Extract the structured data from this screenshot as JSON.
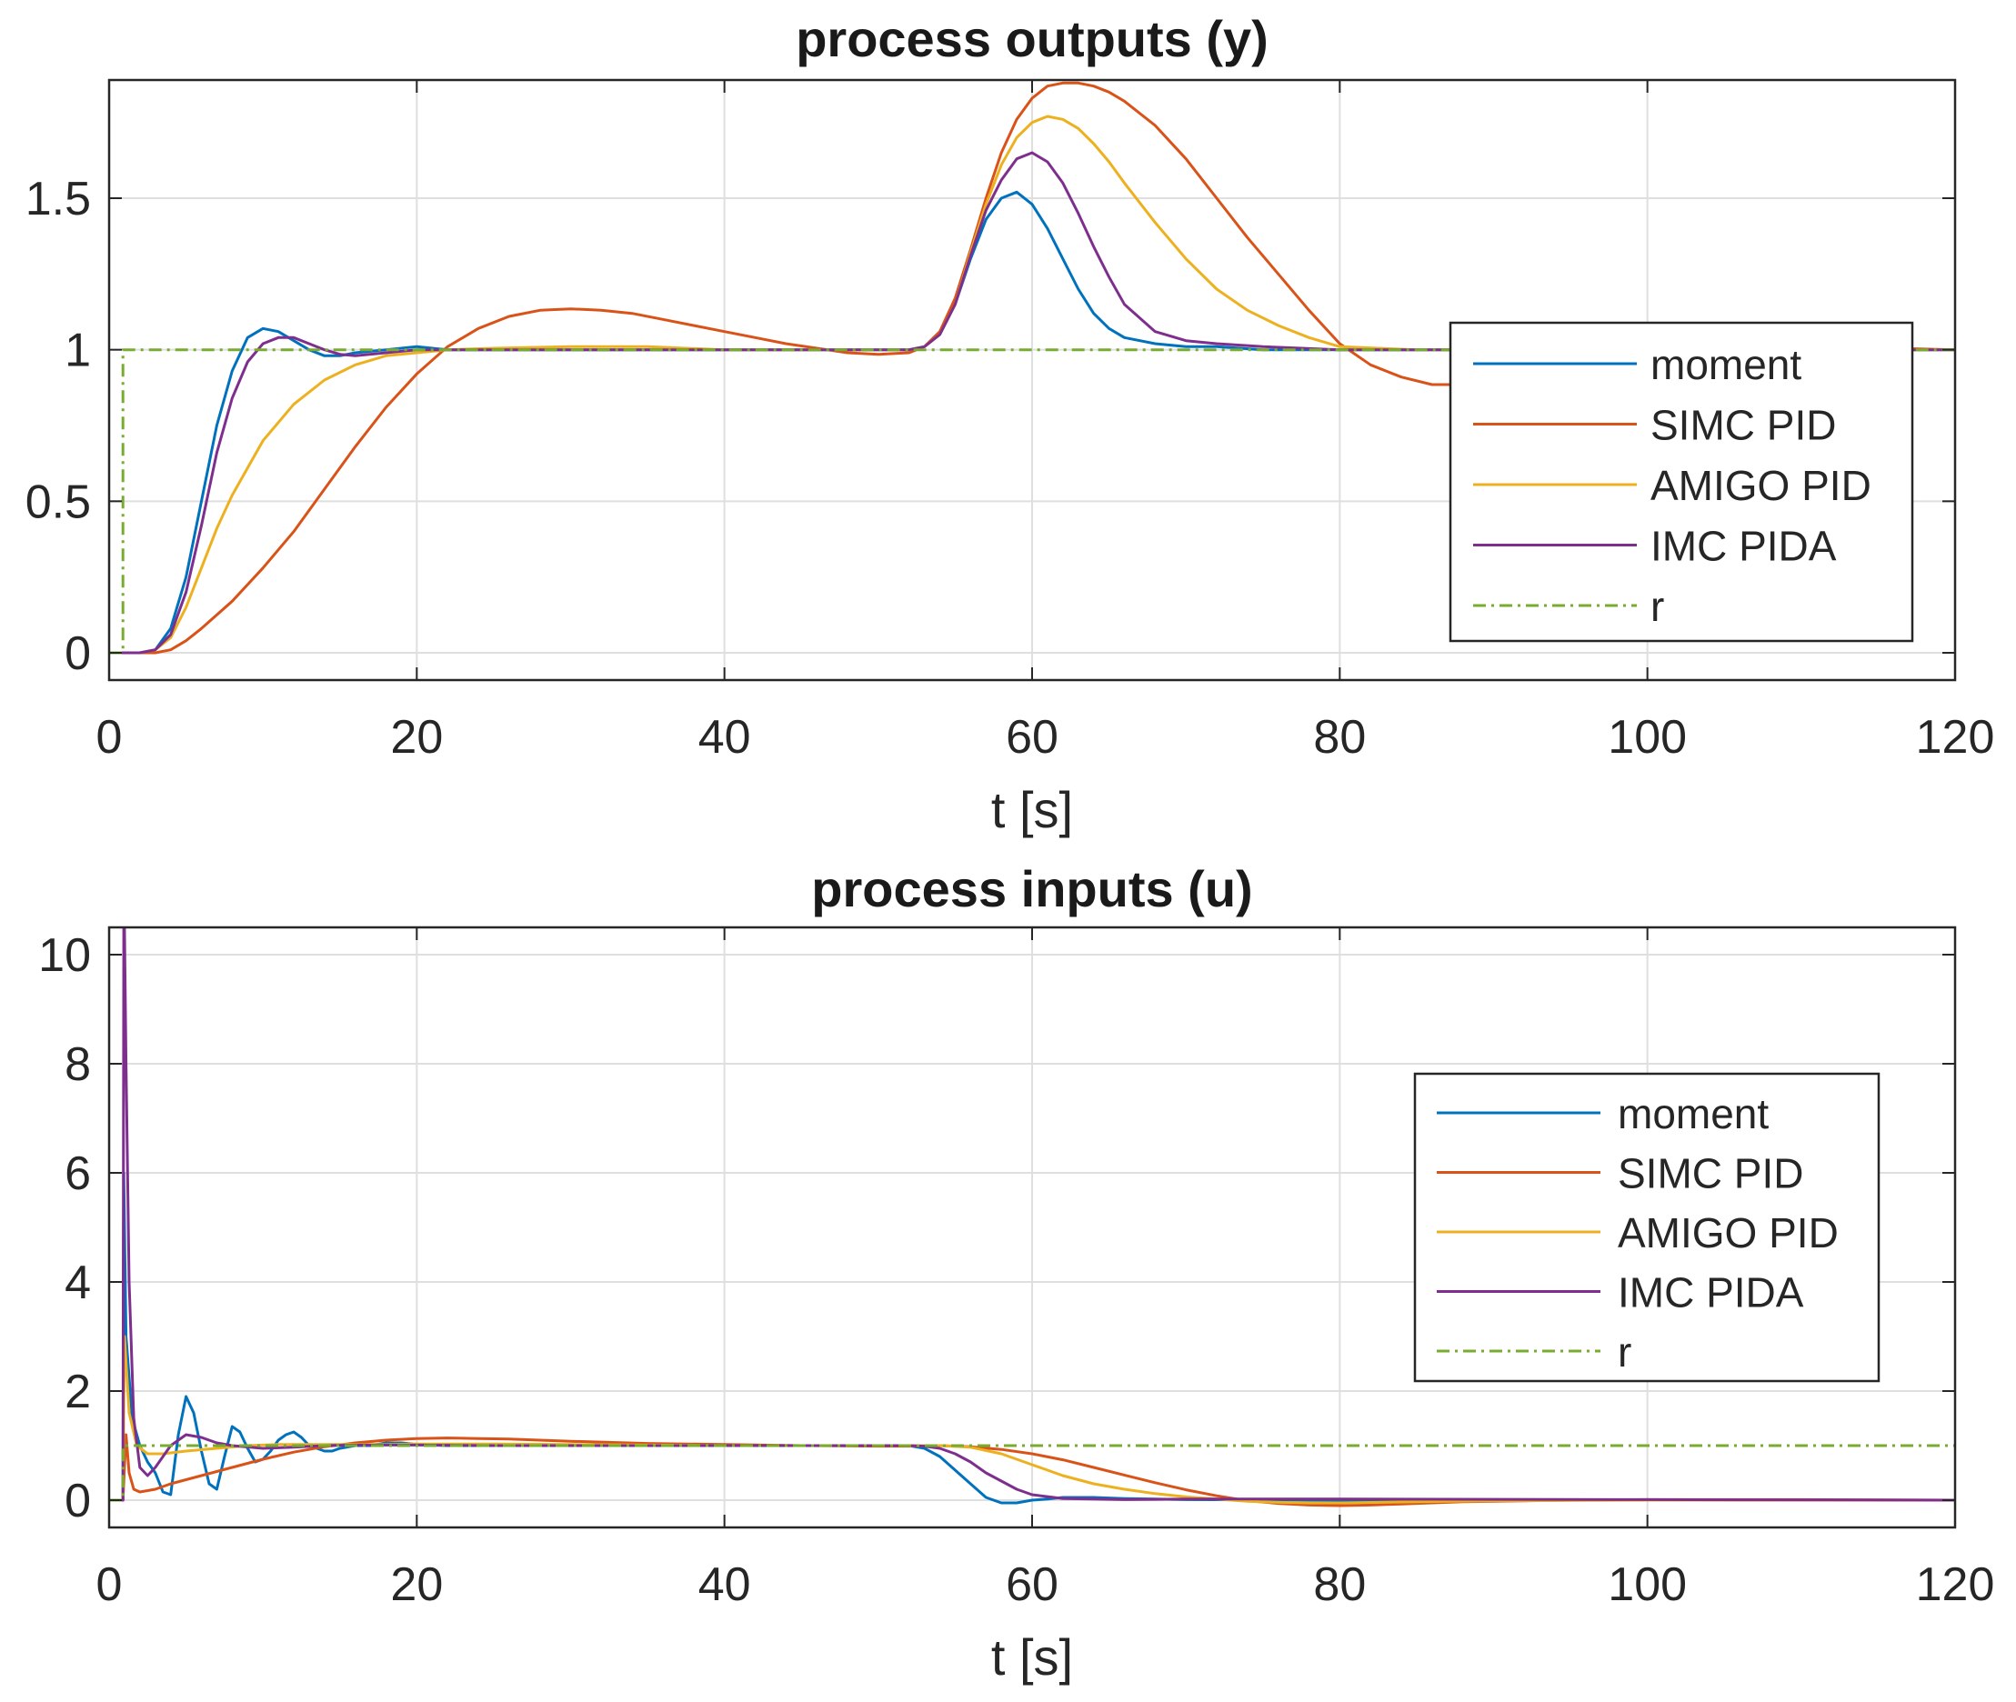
{
  "figure": {
    "chart_data": [
      {
        "type": "line",
        "title": "process outputs (y)",
        "xlabel": "t [s]",
        "ylabel": "",
        "xlim": [
          0,
          120
        ],
        "ylim": [
          -0.09,
          1.89
        ],
        "xticks": [
          0,
          20,
          40,
          60,
          80,
          100,
          120
        ],
        "xtick_labels": [
          "0",
          "20",
          "40",
          "60",
          "80",
          "100",
          "120"
        ],
        "yticks": [
          0,
          0.5,
          1,
          1.5
        ],
        "ytick_labels": [
          "0",
          "0.5",
          "1",
          "1.5"
        ],
        "grid": true,
        "legend_position": "right",
        "series": [
          {
            "name": "moment",
            "color": "#0072bd",
            "dash": "solid",
            "x": [
              0,
              2,
              3,
              4,
              5,
              6,
              7,
              8,
              9,
              10,
              11,
              12,
              13,
              14,
              15,
              16,
              18,
              20,
              22,
              25,
              30,
              40,
              50,
              52,
              53,
              54,
              55,
              56,
              57,
              58,
              59,
              60,
              61,
              62,
              63,
              64,
              65,
              66,
              68,
              70,
              72,
              75,
              80,
              85,
              90,
              100,
              120
            ],
            "y": [
              0,
              0,
              0.01,
              0.08,
              0.25,
              0.5,
              0.75,
              0.93,
              1.04,
              1.07,
              1.06,
              1.03,
              1,
              0.98,
              0.98,
              0.99,
              1,
              1.01,
              1,
              1,
              1,
              1,
              1,
              1,
              1.01,
              1.05,
              1.15,
              1.3,
              1.43,
              1.5,
              1.52,
              1.48,
              1.4,
              1.3,
              1.2,
              1.12,
              1.07,
              1.04,
              1.02,
              1.01,
              1.01,
              1,
              1,
              1,
              1,
              1,
              1
            ]
          },
          {
            "name": "SIMC PID",
            "color": "#d95319",
            "dash": "solid",
            "x": [
              0,
              3,
              4,
              5,
              6,
              8,
              10,
              12,
              14,
              16,
              18,
              20,
              22,
              24,
              26,
              28,
              30,
              32,
              34,
              36,
              38,
              40,
              42,
              44,
              46,
              48,
              50,
              52,
              53,
              54,
              55,
              56,
              57,
              58,
              59,
              60,
              61,
              62,
              63,
              64,
              65,
              66,
              68,
              70,
              72,
              74,
              76,
              78,
              80,
              82,
              84,
              86,
              88,
              90,
              92,
              94,
              96,
              98,
              100,
              104,
              108,
              112,
              116,
              120
            ],
            "y": [
              0,
              0,
              0.01,
              0.04,
              0.08,
              0.17,
              0.28,
              0.4,
              0.54,
              0.68,
              0.81,
              0.92,
              1.01,
              1.07,
              1.11,
              1.13,
              1.135,
              1.13,
              1.12,
              1.1,
              1.08,
              1.06,
              1.04,
              1.02,
              1.005,
              0.99,
              0.985,
              0.99,
              1.01,
              1.06,
              1.17,
              1.33,
              1.5,
              1.65,
              1.76,
              1.83,
              1.87,
              1.88,
              1.88,
              1.87,
              1.85,
              1.82,
              1.74,
              1.63,
              1.5,
              1.37,
              1.25,
              1.13,
              1.02,
              0.95,
              0.91,
              0.885,
              0.885,
              0.895,
              0.91,
              0.93,
              0.95,
              0.97,
              0.98,
              0.995,
              1.005,
              1.01,
              1.005,
              1
            ]
          },
          {
            "name": "AMIGO PID",
            "color": "#edb120",
            "dash": "solid",
            "x": [
              0,
              2,
              3,
              4,
              5,
              6,
              7,
              8,
              10,
              12,
              14,
              16,
              18,
              20,
              22,
              25,
              30,
              35,
              40,
              45,
              50,
              52,
              53,
              54,
              55,
              56,
              57,
              58,
              59,
              60,
              61,
              62,
              63,
              64,
              65,
              66,
              68,
              70,
              72,
              74,
              76,
              78,
              80,
              85,
              90,
              100,
              120
            ],
            "y": [
              0,
              0,
              0.01,
              0.05,
              0.15,
              0.28,
              0.41,
              0.52,
              0.7,
              0.82,
              0.9,
              0.95,
              0.98,
              0.99,
              1,
              1.005,
              1.01,
              1.01,
              1,
              1,
              1,
              1,
              1.01,
              1.05,
              1.15,
              1.32,
              1.48,
              1.61,
              1.7,
              1.75,
              1.77,
              1.76,
              1.73,
              1.68,
              1.62,
              1.55,
              1.42,
              1.3,
              1.2,
              1.13,
              1.08,
              1.04,
              1.01,
              1,
              1,
              1,
              1
            ]
          },
          {
            "name": "IMC PIDA",
            "color": "#7e2f8e",
            "dash": "solid",
            "x": [
              0,
              2,
              3,
              4,
              5,
              6,
              7,
              8,
              9,
              10,
              11,
              12,
              13,
              14,
              15,
              16,
              18,
              20,
              22,
              25,
              30,
              40,
              50,
              52,
              53,
              54,
              55,
              56,
              57,
              58,
              59,
              60,
              61,
              62,
              63,
              64,
              65,
              66,
              68,
              70,
              72,
              75,
              80,
              85,
              90,
              100,
              120
            ],
            "y": [
              0,
              0,
              0.01,
              0.06,
              0.2,
              0.42,
              0.66,
              0.84,
              0.96,
              1.02,
              1.04,
              1.04,
              1.02,
              1,
              0.985,
              0.98,
              0.99,
              1,
              1,
              1,
              1,
              1,
              1,
              1,
              1.01,
              1.05,
              1.15,
              1.31,
              1.46,
              1.56,
              1.63,
              1.65,
              1.62,
              1.55,
              1.45,
              1.34,
              1.24,
              1.15,
              1.06,
              1.03,
              1.02,
              1.01,
              1,
              1,
              1,
              1,
              1
            ]
          },
          {
            "name": "r",
            "color": "#77ac30",
            "dash": "dashdot",
            "x": [
              0,
              0.9,
              0.9,
              120
            ],
            "y": [
              0,
              0,
              1,
              1
            ]
          }
        ]
      },
      {
        "type": "line",
        "title": "process inputs (u)",
        "xlabel": "t [s]",
        "ylabel": "",
        "xlim": [
          0,
          120
        ],
        "ylim": [
          -0.5,
          10.5
        ],
        "xticks": [
          0,
          20,
          40,
          60,
          80,
          100,
          120
        ],
        "xtick_labels": [
          "0",
          "20",
          "40",
          "60",
          "80",
          "100",
          "120"
        ],
        "yticks": [
          0,
          2,
          4,
          6,
          8,
          10
        ],
        "ytick_labels": [
          "0",
          "2",
          "4",
          "6",
          "8",
          "10"
        ],
        "grid": true,
        "legend_position": "right",
        "series": [
          {
            "name": "moment",
            "color": "#0072bd",
            "dash": "solid",
            "x": [
              0,
              0.9,
              0.95,
              1.1,
              1.5,
              2,
              2.5,
              3,
              3.5,
              4,
              4.5,
              5,
              5.5,
              6,
              6.5,
              7,
              7.5,
              8,
              8.5,
              9,
              9.5,
              10,
              10.5,
              11,
              11.5,
              12,
              12.5,
              13,
              13.5,
              14,
              14.5,
              15,
              16,
              17,
              18,
              19,
              20,
              22,
              25,
              30,
              40,
              50,
              52,
              53,
              54,
              55,
              56,
              57,
              58,
              59,
              60,
              61,
              62,
              64,
              66,
              70,
              80,
              100,
              120
            ],
            "y": [
              0,
              0,
              6,
              3,
              1.5,
              1,
              0.7,
              0.5,
              0.15,
              0.1,
              1.2,
              1.9,
              1.6,
              0.9,
              0.3,
              0.2,
              0.8,
              1.35,
              1.25,
              0.95,
              0.7,
              0.75,
              0.9,
              1.1,
              1.2,
              1.25,
              1.15,
              1,
              0.95,
              0.9,
              0.9,
              0.95,
              1,
              1,
              1.05,
              1.05,
              1.02,
              1,
              1,
              1,
              1,
              1,
              1,
              0.95,
              0.8,
              0.55,
              0.3,
              0.05,
              -0.05,
              -0.05,
              0,
              0.02,
              0.05,
              0.05,
              0.03,
              0.01,
              0,
              0,
              0
            ]
          },
          {
            "name": "SIMC PID",
            "color": "#d95319",
            "dash": "solid",
            "x": [
              0,
              0.9,
              1.1,
              1.3,
              1.6,
              2,
              3,
              4,
              6,
              8,
              10,
              12,
              14,
              16,
              18,
              20,
              22,
              24,
              26,
              28,
              30,
              35,
              40,
              45,
              50,
              52,
              53,
              54,
              56,
              58,
              60,
              62,
              64,
              66,
              68,
              70,
              72,
              74,
              76,
              78,
              80,
              82,
              84,
              86,
              88,
              90,
              95,
              100,
              110,
              120
            ],
            "y": [
              0,
              0,
              1.2,
              0.5,
              0.2,
              0.15,
              0.2,
              0.3,
              0.45,
              0.6,
              0.75,
              0.88,
              0.98,
              1.05,
              1.1,
              1.13,
              1.14,
              1.13,
              1.12,
              1.1,
              1.08,
              1.04,
              1.02,
              1,
              0.99,
              0.99,
              1,
              1,
              0.98,
              0.93,
              0.85,
              0.74,
              0.6,
              0.46,
              0.32,
              0.19,
              0.08,
              -0.01,
              -0.06,
              -0.09,
              -0.1,
              -0.09,
              -0.07,
              -0.05,
              -0.03,
              -0.02,
              0,
              0.01,
              0.01,
              0
            ]
          },
          {
            "name": "AMIGO PID",
            "color": "#edb120",
            "dash": "solid",
            "x": [
              0,
              0.9,
              1,
              1.3,
              1.8,
              2.5,
              3.5,
              5,
              7,
              9,
              11,
              13,
              15,
              18,
              20,
              22,
              25,
              30,
              35,
              40,
              45,
              50,
              52,
              53,
              54,
              56,
              58,
              60,
              62,
              64,
              66,
              68,
              70,
              72,
              74,
              76,
              78,
              80,
              85,
              90,
              100,
              120
            ],
            "y": [
              0,
              0,
              3,
              1.6,
              1,
              0.85,
              0.85,
              0.9,
              0.95,
              1,
              1.02,
              1.02,
              1.02,
              1.02,
              1.03,
              1.03,
              1.03,
              1.02,
              1.01,
              1,
              1,
              1,
              1,
              1,
              1,
              0.97,
              0.85,
              0.65,
              0.45,
              0.3,
              0.2,
              0.12,
              0.06,
              0.02,
              -0.02,
              -0.04,
              -0.05,
              -0.05,
              -0.03,
              -0.01,
              0,
              0
            ]
          },
          {
            "name": "IMC PIDA",
            "color": "#7e2f8e",
            "dash": "solid",
            "x": [
              0,
              0.9,
              0.95,
              1.0,
              1.1,
              1.3,
              1.6,
              2,
              2.5,
              3,
              4,
              5,
              6,
              7,
              8,
              10,
              12,
              14,
              16,
              18,
              20,
              25,
              30,
              40,
              50,
              52,
              53,
              54,
              55,
              56,
              57,
              58,
              59,
              60,
              62,
              64,
              66,
              70,
              80,
              100,
              120
            ],
            "y": [
              0,
              0,
              10.5,
              10.5,
              8,
              4,
              1.5,
              0.6,
              0.45,
              0.6,
              1,
              1.2,
              1.15,
              1.05,
              1,
              0.95,
              0.97,
              1,
              1.01,
              1.01,
              1.01,
              1,
              1,
              1,
              1,
              1,
              0.99,
              0.95,
              0.85,
              0.7,
              0.5,
              0.35,
              0.2,
              0.1,
              0.03,
              0.02,
              0.01,
              0.02,
              0.02,
              0.01,
              0
            ]
          },
          {
            "name": "r",
            "color": "#77ac30",
            "dash": "dashdot",
            "x": [
              0,
              0.9,
              0.9,
              120
            ],
            "y": [
              0,
              0,
              1,
              1
            ]
          }
        ]
      }
    ]
  }
}
